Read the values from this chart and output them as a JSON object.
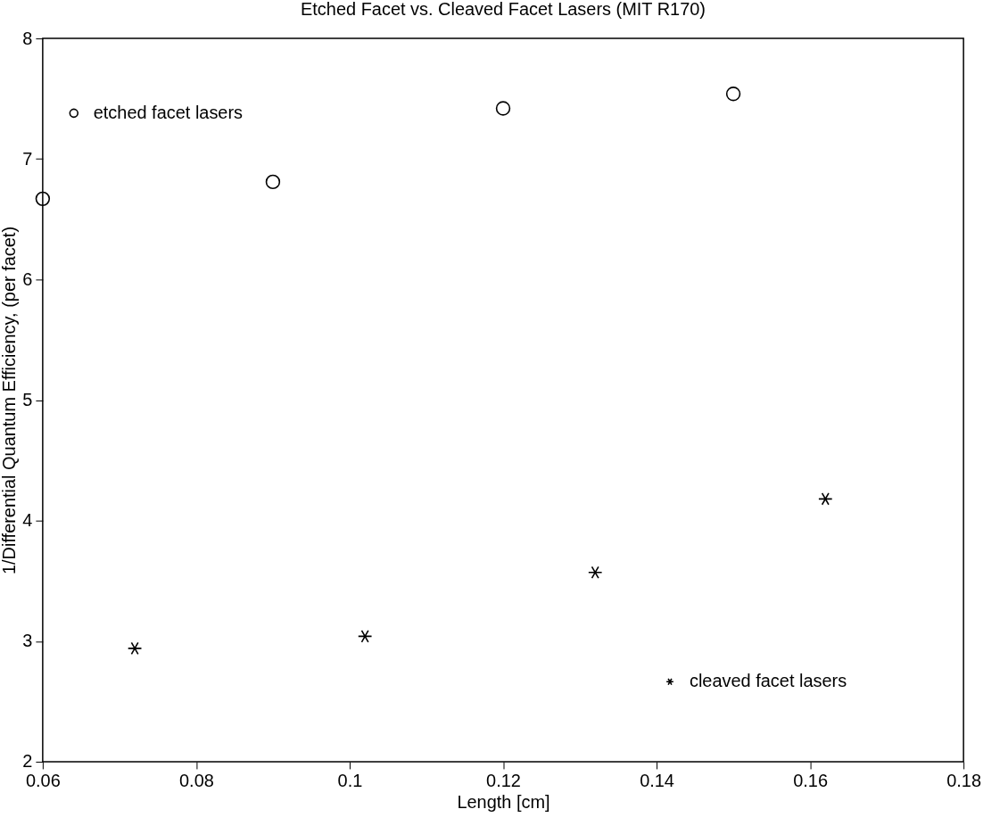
{
  "chart_data": {
    "type": "scatter",
    "title": "Etched Facet vs. Cleaved Facet Lasers (MIT R170)",
    "xlabel": "Length   [cm]",
    "ylabel": "1/Differential Quantum Efficiency, (per facet)",
    "series": [
      {
        "name": "etched facet lasers",
        "color": "#000000",
        "marker": "circle",
        "x": [
          0.06,
          0.09,
          0.12,
          0.15
        ],
        "values": [
          6.67,
          6.81,
          7.42,
          7.54
        ]
      },
      {
        "name": "cleaved facet lasers",
        "color": "#000000",
        "marker": "cross",
        "x": [
          0.072,
          0.102,
          0.132,
          0.162
        ],
        "values": [
          2.94,
          3.04,
          3.57,
          4.18
        ]
      }
    ],
    "xlim": [
      0.06,
      0.18
    ],
    "xticks": [
      0.06,
      0.08,
      {
        "value": 0.1,
        "label": "0.1"
      },
      0.12,
      0.14,
      0.16,
      0.18
    ],
    "legend": "top left",
    "ylim": [
      2,
      8
    ],
    "yticks": [
      2,
      3,
      4,
      5,
      6,
      7,
      8
    ],
    "grid": false
  }
}
